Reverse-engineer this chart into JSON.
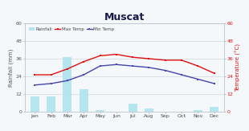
{
  "title": "Muscat",
  "months": [
    "Jan",
    "Feb",
    "Mar",
    "Apr",
    "May",
    "Jun",
    "Jul",
    "Aug",
    "Sep",
    "Oct",
    "Nov",
    "Dec"
  ],
  "rainfall": [
    10,
    10,
    37,
    15,
    1,
    0,
    5,
    2,
    0,
    0,
    1,
    3
  ],
  "max_temp": [
    25,
    25,
    29,
    34,
    38,
    39,
    37,
    36,
    35,
    35,
    31,
    26
  ],
  "min_temp": [
    18,
    19,
    21,
    25,
    31,
    32,
    31,
    30,
    28,
    25,
    22,
    19
  ],
  "rainfall_color": "#aee4ef",
  "max_temp_color": "#dd1111",
  "min_temp_color": "#4444aa",
  "background_color": "#f5f8fa",
  "grid_color": "#d0d8e0",
  "ylabel_left": "Rainfall (mm)",
  "ylabel_right": "Temperature (°C)",
  "ylim_left": [
    0,
    60
  ],
  "ylim_right": [
    0,
    60
  ],
  "yticks": [
    0,
    12,
    24,
    36,
    48,
    60
  ],
  "legend_labels": [
    "Rainfall",
    "Max Temp",
    "Min Temp"
  ],
  "title_fontsize": 9,
  "label_fontsize": 5,
  "tick_fontsize": 4.5,
  "legend_fontsize": 4
}
